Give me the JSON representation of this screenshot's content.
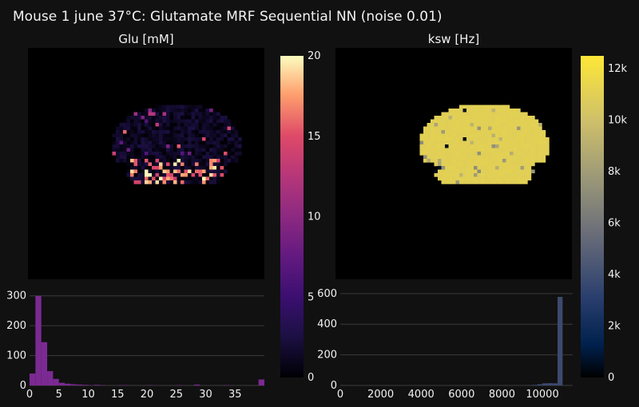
{
  "title": "Mouse 1 june 37°C: Glutamate MRF Sequential NN (noise 0.01)",
  "chart_data": [
    {
      "type": "heatmap",
      "title": "Glu [mM]",
      "colorscale": "magma",
      "zrange": [
        0,
        20
      ],
      "colorbar_ticks": [
        "0",
        "5",
        "10",
        "15",
        "20"
      ],
      "colorbar_tick_values": [
        0,
        5,
        10,
        15,
        20
      ],
      "description_values": "brain slice map with low values (0-3 mM) and bright rim values (~20 mM) along the lower edge"
    },
    {
      "type": "heatmap",
      "title": "ksw [Hz]",
      "colorscale": "cividis",
      "zrange": [
        0,
        12500
      ],
      "colorbar_ticks": [
        "0",
        "2k",
        "4k",
        "6k",
        "8k",
        "10k",
        "12k"
      ],
      "colorbar_tick_values": [
        0,
        2000,
        4000,
        6000,
        8000,
        10000,
        12000
      ],
      "typical_value": 11000
    },
    {
      "type": "bar",
      "subtype": "histogram",
      "of": "Glu [mM]",
      "color": "#7b2a93",
      "xlim": [
        0,
        40
      ],
      "ylim": [
        0,
        310
      ],
      "xticks": [
        0,
        5,
        10,
        15,
        20,
        25,
        30,
        35
      ],
      "yticks": [
        0,
        100,
        200,
        300
      ],
      "bin_width": 1,
      "values": [
        40,
        300,
        145,
        48,
        22,
        9,
        6,
        4,
        3,
        2,
        1,
        2,
        1,
        0,
        0,
        1,
        1,
        0,
        0,
        0,
        1,
        0,
        0,
        0,
        0,
        1,
        0,
        0,
        3,
        0,
        0,
        0,
        0,
        1,
        0,
        0,
        0,
        0,
        0,
        20
      ]
    },
    {
      "type": "bar",
      "subtype": "histogram",
      "of": "ksw [Hz]",
      "color": "#3d4a6f",
      "xlim": [
        0,
        11500
      ],
      "ylim": [
        0,
        620
      ],
      "xticks": [
        0,
        2000,
        4000,
        6000,
        8000,
        10000
      ],
      "yticks": [
        0,
        200,
        400,
        600
      ],
      "bin_width": 250,
      "values": [
        2,
        0,
        0,
        0,
        0,
        0,
        0,
        0,
        0,
        0,
        0,
        0,
        0,
        0,
        0,
        0,
        0,
        0,
        0,
        0,
        0,
        0,
        0,
        0,
        0,
        0,
        0,
        0,
        0,
        0,
        0,
        0,
        1,
        0,
        0,
        0,
        0,
        2,
        4,
        8,
        14,
        15,
        14,
        578,
        0,
        0
      ]
    }
  ]
}
